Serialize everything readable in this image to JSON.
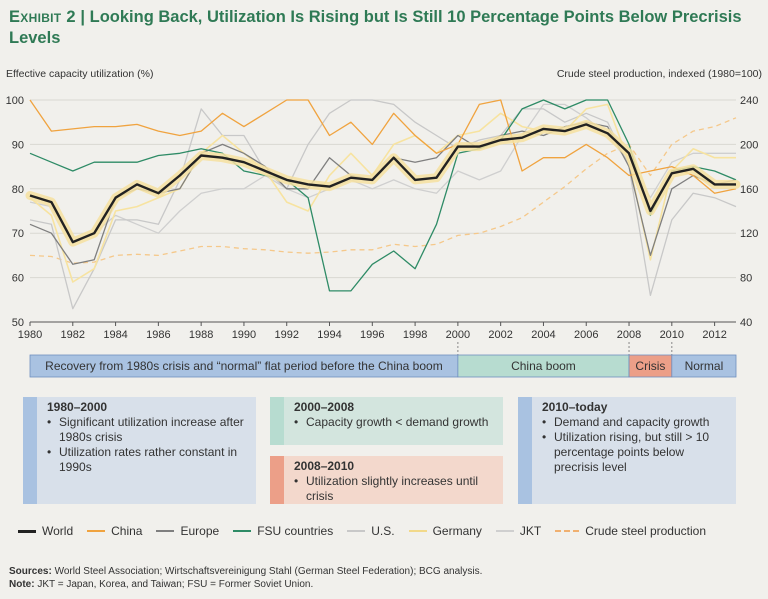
{
  "title": {
    "exhibit": "Exhibit 2",
    "separator": "|",
    "text": "Looking Back, Utilization Is Rising but Is Still 10 Percentage Points Below Precrisis Levels"
  },
  "chart_data": {
    "type": "line",
    "ylabel_left": "Effective capacity utilization (%)",
    "ylabel_right": "Crude steel production, indexed (1980=100)",
    "ylim_left": [
      50,
      100
    ],
    "ylim_right": [
      40,
      240
    ],
    "yticks_left": [
      50,
      60,
      70,
      80,
      90,
      100
    ],
    "yticks_right": [
      40,
      80,
      120,
      160,
      200,
      240
    ],
    "xlim": [
      1980,
      2013
    ],
    "xticks": [
      1980,
      1982,
      1984,
      1986,
      1988,
      1990,
      1992,
      1994,
      1996,
      1998,
      2000,
      2002,
      2004,
      2006,
      2008,
      2010,
      2012
    ],
    "x": [
      1980,
      1981,
      1982,
      1983,
      1984,
      1985,
      1986,
      1987,
      1988,
      1989,
      1990,
      1991,
      1992,
      1993,
      1994,
      1995,
      1996,
      1997,
      1998,
      1999,
      2000,
      2001,
      2002,
      2003,
      2004,
      2005,
      2006,
      2007,
      2008,
      2009,
      2010,
      2011,
      2012,
      2013
    ],
    "series": [
      {
        "name": "China",
        "axis": "left",
        "color": "#f0a33f",
        "style": "solid",
        "values": [
          100,
          93,
          93.5,
          94,
          94,
          94.5,
          93,
          92,
          93,
          97,
          94,
          97,
          100,
          100,
          92,
          95,
          90,
          97,
          92,
          88,
          90,
          99,
          100,
          84,
          87,
          87,
          90,
          87,
          83,
          84,
          85,
          83,
          79,
          80
        ]
      },
      {
        "name": "Europe",
        "axis": "left",
        "color": "#7f7f7f",
        "style": "solid",
        "values": [
          72,
          70,
          63,
          64,
          78,
          80,
          79,
          80,
          88,
          90,
          88,
          85,
          80,
          80,
          87,
          83,
          82,
          87,
          86,
          87,
          92,
          89,
          92,
          93,
          92,
          94,
          95,
          94,
          85,
          65,
          80,
          83,
          81,
          82
        ]
      },
      {
        "name": "FSU countries",
        "axis": "left",
        "color": "#2e8b66",
        "style": "solid",
        "values": [
          88,
          86,
          84,
          86,
          86,
          86,
          87.5,
          88,
          89,
          88,
          84,
          83,
          82,
          78,
          57,
          57,
          63,
          66,
          62,
          72,
          88,
          89,
          91,
          98,
          100,
          98,
          100,
          100,
          90,
          74,
          84,
          85,
          84,
          82
        ]
      },
      {
        "name": "U.S.",
        "axis": "left",
        "color": "#c8c8c8",
        "style": "solid",
        "values": [
          73,
          72,
          53,
          62,
          73,
          73,
          72,
          82,
          98,
          92,
          92,
          84,
          80,
          90,
          97,
          100,
          100,
          99,
          95,
          92,
          89,
          91,
          92,
          98,
          98,
          95,
          97,
          95,
          85,
          56,
          73,
          79,
          78,
          76
        ]
      },
      {
        "name": "Germany",
        "axis": "left",
        "color": "#f7e3a0",
        "style": "solid",
        "values": [
          78,
          74,
          59,
          62,
          75,
          76,
          78,
          80,
          88,
          92,
          88,
          84,
          77,
          75,
          83,
          88,
          83,
          90,
          92,
          88,
          92,
          93,
          97,
          94,
          93,
          93,
          98,
          99,
          86,
          64,
          84,
          89,
          87,
          87
        ]
      },
      {
        "name": "JKT",
        "axis": "left",
        "color": "#cfcfcf",
        "style": "solid",
        "values": [
          77,
          76,
          68,
          70,
          74,
          72,
          70,
          75,
          79,
          80,
          80,
          83,
          80,
          78,
          80,
          82,
          80,
          82,
          80,
          79,
          84,
          82,
          84,
          92,
          99,
          99,
          96,
          92,
          86,
          78,
          86,
          88,
          88,
          88
        ]
      },
      {
        "name": "Crude steel production",
        "axis": "right",
        "color": "#f5c88a",
        "style": "dashed",
        "values": [
          100,
          99,
          93,
          94,
          100,
          101,
          100,
          104,
          108,
          108,
          106,
          105,
          103,
          102,
          103,
          105,
          105,
          110,
          108,
          110,
          118,
          120,
          126,
          134,
          148,
          162,
          178,
          192,
          200,
          172,
          200,
          212,
          216,
          224
        ]
      },
      {
        "name": "World",
        "axis": "left",
        "color": "#222222",
        "style": "solid",
        "values": [
          78.5,
          77,
          68,
          70,
          78,
          81,
          79,
          83,
          87.5,
          87,
          86,
          84,
          82,
          81,
          80.5,
          82.5,
          82,
          87,
          82,
          82.5,
          89.5,
          89.5,
          91,
          91.5,
          93.5,
          93,
          94.5,
          92.5,
          88,
          75,
          83.5,
          84.5,
          81,
          81
        ]
      }
    ]
  },
  "phases": [
    {
      "label": "Recovery from 1980s crisis and “normal” flat period before the China boom",
      "from": 1980,
      "to": 2000,
      "color": "#a9c2e1"
    },
    {
      "label": "China boom",
      "from": 2000,
      "to": 2008,
      "color": "#b7dcd0"
    },
    {
      "label": "Crisis",
      "from": 2008,
      "to": 2010,
      "color": "#ec9f88"
    },
    {
      "label": "Normal",
      "from": 2010,
      "to": 2013,
      "color": "#a9c2e1"
    }
  ],
  "boxes": {
    "b1": {
      "heading": "1980–2000",
      "items": [
        "Significant utilization increase after 1980s crisis",
        "Utilization rates rather constant in 1990s"
      ]
    },
    "b2": {
      "heading": "2000–2008",
      "items": [
        "Capacity growth < demand growth"
      ]
    },
    "b3": {
      "heading": "2008–2010",
      "items": [
        "Utilization slightly increases until crisis"
      ]
    },
    "b4": {
      "heading": "2010–today",
      "items": [
        "Demand and capacity growth",
        "Utilization rising, but still > 10 percentage points below precrisis level"
      ]
    }
  },
  "legend": [
    {
      "label": "World",
      "color": "#222222",
      "style": "solid"
    },
    {
      "label": "China",
      "color": "#f0a33f",
      "style": "solid"
    },
    {
      "label": "Europe",
      "color": "#7f7f7f",
      "style": "solid"
    },
    {
      "label": "FSU countries",
      "color": "#2e8b66",
      "style": "solid"
    },
    {
      "label": "U.S.",
      "color": "#c8c8c8",
      "style": "solid"
    },
    {
      "label": "Germany",
      "color": "#f7e3a0",
      "style": "solid"
    },
    {
      "label": "JKT",
      "color": "#cfcfcf",
      "style": "solid"
    },
    {
      "label": "Crude steel production",
      "color": "#f5c88a",
      "style": "dashed"
    }
  ],
  "footer": {
    "sources_label": "Sources:",
    "sources_text": "World Steel Association; Wirtschaftsvereinigung Stahl (German Steel Federation); BCG analysis.",
    "note_label": "Note:",
    "note_text": "JKT = Japan, Korea, and Taiwan; FSU = Former Soviet Union."
  }
}
